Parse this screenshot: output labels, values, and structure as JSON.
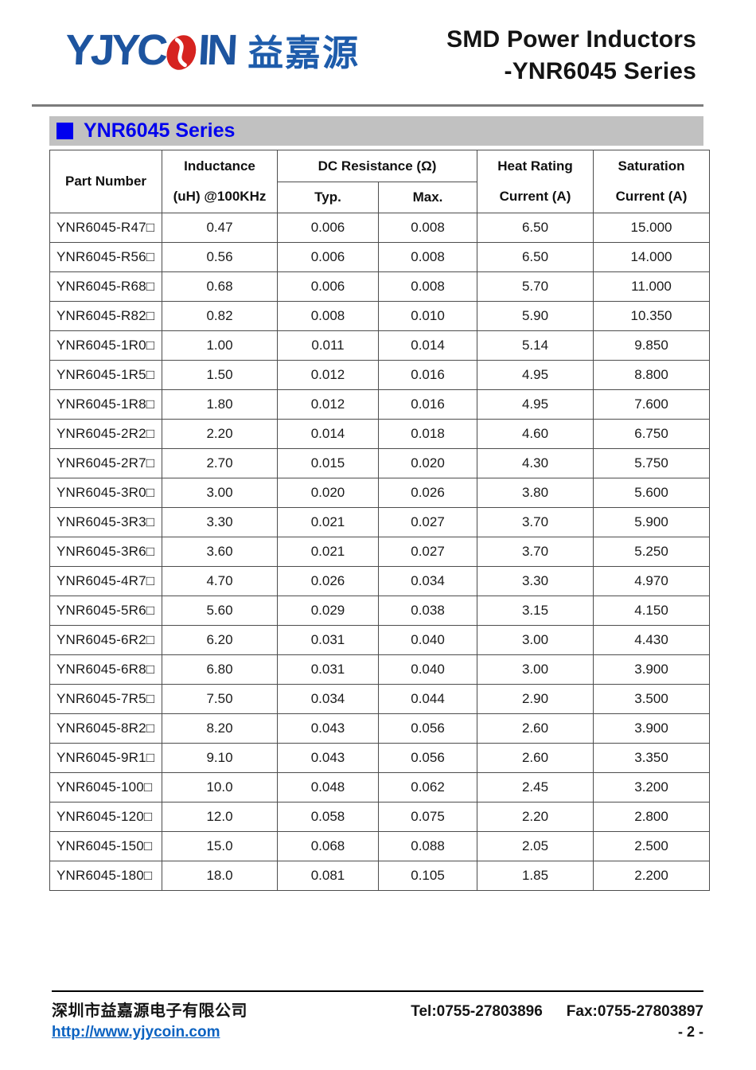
{
  "colors": {
    "accent": "#0000ee",
    "bar_gray": "#c1c1c1",
    "logo_blue": "#1d549f",
    "logo_cn_blue": "#1e5cab",
    "logo_red": "#d6231f",
    "link_blue": "#0b62c1"
  },
  "header": {
    "logo": {
      "text_left": "YJYC",
      "text_right": "IN",
      "cn": "益嘉源"
    },
    "title_line1": "SMD Power Inductors",
    "title_line2": "-YNR6045 Series"
  },
  "section": {
    "title": "YNR6045 Series"
  },
  "table": {
    "headers": {
      "part": "Part Number",
      "inductance_1": "Inductance",
      "inductance_2": "(uH) @100KHz",
      "dcr": "DC Resistance (Ω)",
      "typ": "Typ.",
      "max": "Max.",
      "heat_1": "Heat Rating",
      "heat_2": "Current (A)",
      "sat_1": "Saturation",
      "sat_2": "Current (A)"
    },
    "rows": [
      {
        "part": "YNR6045-R47□",
        "inductance": "0.47",
        "typ": "0.006",
        "max": "0.008",
        "heat": "6.50",
        "sat": "15.000"
      },
      {
        "part": "YNR6045-R56□",
        "inductance": "0.56",
        "typ": "0.006",
        "max": "0.008",
        "heat": "6.50",
        "sat": "14.000"
      },
      {
        "part": "YNR6045-R68□",
        "inductance": "0.68",
        "typ": "0.006",
        "max": "0.008",
        "heat": "5.70",
        "sat": "11.000"
      },
      {
        "part": "YNR6045-R82□",
        "inductance": "0.82",
        "typ": "0.008",
        "max": "0.010",
        "heat": "5.90",
        "sat": "10.350"
      },
      {
        "part": "YNR6045-1R0□",
        "inductance": "1.00",
        "typ": "0.011",
        "max": "0.014",
        "heat": "5.14",
        "sat": "9.850"
      },
      {
        "part": "YNR6045-1R5□",
        "inductance": "1.50",
        "typ": "0.012",
        "max": "0.016",
        "heat": "4.95",
        "sat": "8.800"
      },
      {
        "part": "YNR6045-1R8□",
        "inductance": "1.80",
        "typ": "0.012",
        "max": "0.016",
        "heat": "4.95",
        "sat": "7.600"
      },
      {
        "part": "YNR6045-2R2□",
        "inductance": "2.20",
        "typ": "0.014",
        "max": "0.018",
        "heat": "4.60",
        "sat": "6.750"
      },
      {
        "part": "YNR6045-2R7□",
        "inductance": "2.70",
        "typ": "0.015",
        "max": "0.020",
        "heat": "4.30",
        "sat": "5.750"
      },
      {
        "part": "YNR6045-3R0□",
        "inductance": "3.00",
        "typ": "0.020",
        "max": "0.026",
        "heat": "3.80",
        "sat": "5.600"
      },
      {
        "part": "YNR6045-3R3□",
        "inductance": "3.30",
        "typ": "0.021",
        "max": "0.027",
        "heat": "3.70",
        "sat": "5.900"
      },
      {
        "part": "YNR6045-3R6□",
        "inductance": "3.60",
        "typ": "0.021",
        "max": "0.027",
        "heat": "3.70",
        "sat": "5.250"
      },
      {
        "part": "YNR6045-4R7□",
        "inductance": "4.70",
        "typ": "0.026",
        "max": "0.034",
        "heat": "3.30",
        "sat": "4.970"
      },
      {
        "part": "YNR6045-5R6□",
        "inductance": "5.60",
        "typ": "0.029",
        "max": "0.038",
        "heat": "3.15",
        "sat": "4.150"
      },
      {
        "part": "YNR6045-6R2□",
        "inductance": "6.20",
        "typ": "0.031",
        "max": "0.040",
        "heat": "3.00",
        "sat": "4.430"
      },
      {
        "part": "YNR6045-6R8□",
        "inductance": "6.80",
        "typ": "0.031",
        "max": "0.040",
        "heat": "3.00",
        "sat": "3.900"
      },
      {
        "part": "YNR6045-7R5□",
        "inductance": "7.50",
        "typ": "0.034",
        "max": "0.044",
        "heat": "2.90",
        "sat": "3.500"
      },
      {
        "part": "YNR6045-8R2□",
        "inductance": "8.20",
        "typ": "0.043",
        "max": "0.056",
        "heat": "2.60",
        "sat": "3.900"
      },
      {
        "part": "YNR6045-9R1□",
        "inductance": "9.10",
        "typ": "0.043",
        "max": "0.056",
        "heat": "2.60",
        "sat": "3.350"
      },
      {
        "part": "YNR6045-100□",
        "inductance": "10.0",
        "typ": "0.048",
        "max": "0.062",
        "heat": "2.45",
        "sat": "3.200"
      },
      {
        "part": "YNR6045-120□",
        "inductance": "12.0",
        "typ": "0.058",
        "max": "0.075",
        "heat": "2.20",
        "sat": "2.800"
      },
      {
        "part": "YNR6045-150□",
        "inductance": "15.0",
        "typ": "0.068",
        "max": "0.088",
        "heat": "2.05",
        "sat": "2.500"
      },
      {
        "part": "YNR6045-180□",
        "inductance": "18.0",
        "typ": "0.081",
        "max": "0.105",
        "heat": "1.85",
        "sat": "2.200"
      }
    ]
  },
  "footer": {
    "company": "深圳市益嘉源电子有限公司",
    "tel": "Tel:0755-27803896",
    "fax": "Fax:0755-27803897",
    "website": "http://www.yjycoin.com",
    "page": "- 2 -"
  }
}
